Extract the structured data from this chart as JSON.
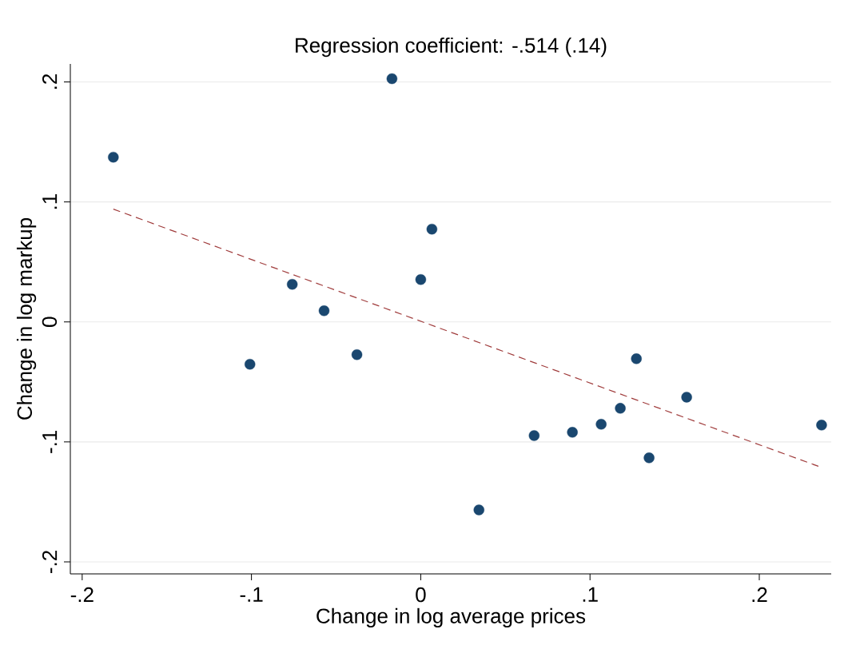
{
  "chart_data": {
    "type": "scatter",
    "title": "Regression coefficient: -.514 (.14)",
    "xlabel": "Change in log average prices",
    "ylabel": "Change in log markup",
    "xlim": [
      -0.207,
      0.2425
    ],
    "ylim": [
      -0.21,
      0.215
    ],
    "xticks": [
      {
        "value": -0.2,
        "label": "-.2"
      },
      {
        "value": -0.1,
        "label": "-.1"
      },
      {
        "value": 0,
        "label": "0"
      },
      {
        "value": 0.1,
        "label": ".1"
      },
      {
        "value": 0.2,
        "label": ".2"
      }
    ],
    "yticks": [
      {
        "value": -0.2,
        "label": "-.2"
      },
      {
        "value": -0.1,
        "label": "-.1"
      },
      {
        "value": 0,
        "label": "0"
      },
      {
        "value": 0.1,
        "label": ".1"
      },
      {
        "value": 0.2,
        "label": ".2"
      }
    ],
    "grid": "y",
    "series": [
      {
        "color": "#1a476f",
        "marker": "circle",
        "x": [
          -0.1816,
          -0.017,
          0.0066,
          0.0,
          -0.0759,
          -0.0571,
          -0.0377,
          -0.1009,
          0.0344,
          0.067,
          0.0896,
          0.1066,
          0.1179,
          0.1274,
          0.1349,
          0.1571,
          0.2368
        ],
        "values": [
          0.1373,
          0.2027,
          0.0773,
          0.0353,
          0.0313,
          0.0093,
          -0.0273,
          -0.0353,
          -0.1567,
          -0.0947,
          -0.092,
          -0.0853,
          -0.072,
          -0.0307,
          -0.1133,
          -0.0627,
          -0.086
        ]
      },
      {
        "type": "line",
        "color": "#a03c3c",
        "marker": "none",
        "line_style": "dashed",
        "x": [
          -0.1816,
          0.2368
        ],
        "values": [
          0.094,
          -0.1213
        ]
      }
    ]
  }
}
